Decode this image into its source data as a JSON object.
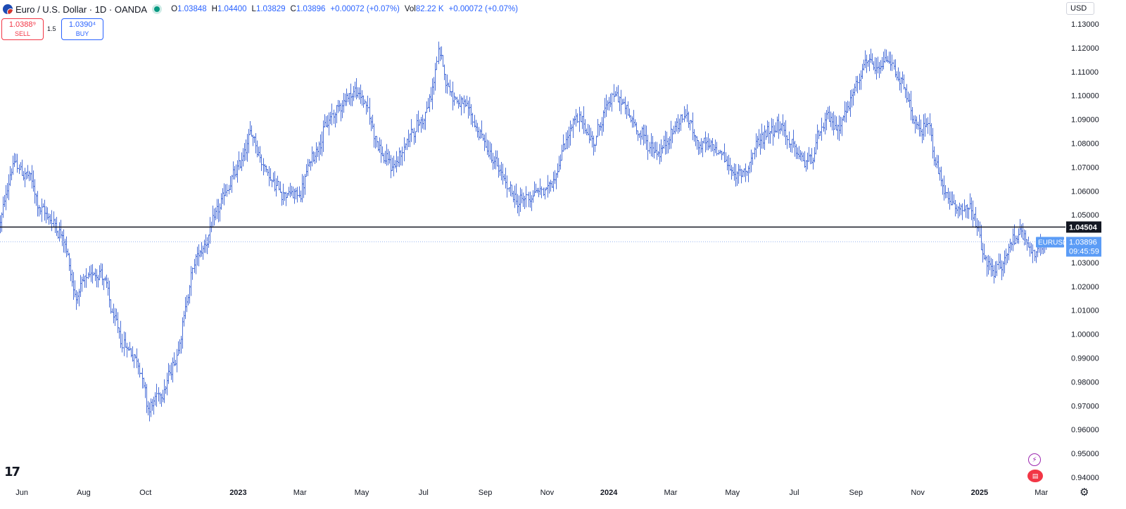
{
  "header": {
    "symbol_title": "Euro / U.S. Dollar · 1D · OANDA",
    "ohlc": [
      {
        "key": "O",
        "value": "1.03848"
      },
      {
        "key": "H",
        "value": "1.04400"
      },
      {
        "key": "L",
        "value": "1.03829"
      },
      {
        "key": "C",
        "value": "1.03896"
      },
      {
        "key": "",
        "value": "+0.00072 (+0.07%)"
      },
      {
        "key": "Vol",
        "value": "82.22 K"
      },
      {
        "key": "",
        "value": "+0.00072 (+0.07%)"
      }
    ],
    "currency": "USD"
  },
  "trade": {
    "sell_price": "1.0388⁹",
    "sell_label": "SELL",
    "spread": "1.5",
    "buy_price": "1.0390⁴",
    "buy_label": "BUY"
  },
  "chart_data": {
    "type": "ohlc",
    "symbol": "EURUSD",
    "interval": "1D",
    "broker": "OANDA",
    "y_range": [
      0.94,
      1.13
    ],
    "y_ticks": [
      "1.13000",
      "1.12000",
      "1.11000",
      "1.10000",
      "1.09000",
      "1.08000",
      "1.07000",
      "1.06000",
      "1.05000",
      "1.03000",
      "1.02000",
      "1.01000",
      "1.00000",
      "0.99000",
      "0.98000",
      "0.97000",
      "0.96000",
      "0.95000",
      "0.94000"
    ],
    "x_ticks": [
      {
        "label": "Jun",
        "t": 0.06
      },
      {
        "label": "Aug",
        "t": 2.06
      },
      {
        "label": "Oct",
        "t": 4.06
      },
      {
        "label": "2023",
        "t": 7.06
      },
      {
        "label": "Mar",
        "t": 9.06
      },
      {
        "label": "May",
        "t": 11.06
      },
      {
        "label": "Jul",
        "t": 13.06
      },
      {
        "label": "Sep",
        "t": 15.06
      },
      {
        "label": "Nov",
        "t": 17.06
      },
      {
        "label": "2024",
        "t": 19.06
      },
      {
        "label": "Mar",
        "t": 21.06
      },
      {
        "label": "May",
        "t": 23.06
      },
      {
        "label": "Jul",
        "t": 25.06
      },
      {
        "label": "Sep",
        "t": 27.06
      },
      {
        "label": "Nov",
        "t": 29.06
      },
      {
        "label": "2025",
        "t": 31.06
      },
      {
        "label": "Mar",
        "t": 33.06
      }
    ],
    "bold_x_ticks": [
      "2023",
      "2024",
      "2025"
    ],
    "x_range_months": [
      -0.65,
      33.75
    ],
    "path_months": [
      [
        -0.65,
        1.047
      ],
      [
        -0.3,
        1.072
      ],
      [
        0.3,
        1.065
      ],
      [
        0.6,
        1.052
      ],
      [
        1.0,
        1.048
      ],
      [
        1.4,
        1.04
      ],
      [
        1.75,
        1.015
      ],
      [
        2.0,
        1.02
      ],
      [
        2.3,
        1.025
      ],
      [
        2.55,
        1.028
      ],
      [
        2.7,
        1.022
      ],
      [
        2.9,
        1.01
      ],
      [
        3.2,
        0.998
      ],
      [
        3.6,
        0.992
      ],
      [
        3.9,
        0.985
      ],
      [
        4.1,
        0.968
      ],
      [
        4.35,
        0.972
      ],
      [
        4.7,
        0.98
      ],
      [
        5.0,
        0.99
      ],
      [
        5.3,
        1.01
      ],
      [
        5.6,
        1.03
      ],
      [
        6.0,
        1.04
      ],
      [
        6.5,
        1.055
      ],
      [
        6.8,
        1.065
      ],
      [
        7.0,
        1.068
      ],
      [
        7.3,
        1.08
      ],
      [
        7.5,
        1.085
      ],
      [
        7.8,
        1.072
      ],
      [
        8.2,
        1.062
      ],
      [
        8.5,
        1.06
      ],
      [
        8.8,
        1.058
      ],
      [
        9.0,
        1.058
      ],
      [
        9.3,
        1.07
      ],
      [
        9.6,
        1.08
      ],
      [
        10.0,
        1.09
      ],
      [
        10.4,
        1.098
      ],
      [
        10.8,
        1.102
      ],
      [
        11.1,
        1.098
      ],
      [
        11.4,
        1.085
      ],
      [
        11.7,
        1.074
      ],
      [
        12.0,
        1.07
      ],
      [
        12.3,
        1.075
      ],
      [
        12.6,
        1.085
      ],
      [
        13.0,
        1.09
      ],
      [
        13.3,
        1.1
      ],
      [
        13.5,
        1.12
      ],
      [
        13.7,
        1.108
      ],
      [
        14.0,
        1.1
      ],
      [
        14.3,
        1.095
      ],
      [
        14.6,
        1.09
      ],
      [
        15.0,
        1.08
      ],
      [
        15.4,
        1.07
      ],
      [
        15.8,
        1.06
      ],
      [
        16.1,
        1.055
      ],
      [
        16.4,
        1.058
      ],
      [
        16.7,
        1.06
      ],
      [
        17.0,
        1.06
      ],
      [
        17.3,
        1.068
      ],
      [
        17.6,
        1.08
      ],
      [
        17.9,
        1.09
      ],
      [
        18.2,
        1.088
      ],
      [
        18.5,
        1.08
      ],
      [
        18.8,
        1.09
      ],
      [
        19.1,
        1.1
      ],
      [
        19.4,
        1.098
      ],
      [
        19.7,
        1.09
      ],
      [
        20.0,
        1.085
      ],
      [
        20.3,
        1.08
      ],
      [
        20.6,
        1.075
      ],
      [
        20.9,
        1.08
      ],
      [
        21.2,
        1.088
      ],
      [
        21.5,
        1.092
      ],
      [
        21.9,
        1.08
      ],
      [
        22.3,
        1.077
      ],
      [
        22.6,
        1.078
      ],
      [
        22.9,
        1.07
      ],
      [
        23.2,
        1.065
      ],
      [
        23.5,
        1.07
      ],
      [
        23.8,
        1.078
      ],
      [
        24.1,
        1.085
      ],
      [
        24.5,
        1.088
      ],
      [
        24.9,
        1.08
      ],
      [
        25.2,
        1.073
      ],
      [
        25.5,
        1.072
      ],
      [
        25.8,
        1.082
      ],
      [
        26.1,
        1.09
      ],
      [
        26.4,
        1.087
      ],
      [
        26.8,
        1.095
      ],
      [
        27.1,
        1.108
      ],
      [
        27.4,
        1.115
      ],
      [
        27.7,
        1.108
      ],
      [
        28.0,
        1.115
      ],
      [
        28.3,
        1.112
      ],
      [
        28.6,
        1.1
      ],
      [
        28.9,
        1.09
      ],
      [
        29.1,
        1.083
      ],
      [
        29.4,
        1.09
      ],
      [
        29.6,
        1.07
      ],
      [
        29.9,
        1.058
      ],
      [
        30.2,
        1.052
      ],
      [
        30.5,
        1.055
      ],
      [
        30.8,
        1.05
      ],
      [
        31.0,
        1.04
      ],
      [
        31.2,
        1.03
      ],
      [
        31.5,
        1.025
      ],
      [
        31.8,
        1.03
      ],
      [
        32.1,
        1.04
      ],
      [
        32.4,
        1.045
      ],
      [
        32.6,
        1.038
      ],
      [
        32.9,
        1.032
      ],
      [
        33.2,
        1.03896
      ]
    ],
    "bar_color": "#4a6fd8",
    "horizontal_line": {
      "value": 1.04504,
      "label": "1.04504",
      "color": "#131722"
    },
    "current_price": {
      "value": 1.03896,
      "label": "1.03896",
      "countdown": "09:45:59",
      "symbol_label": "EURUSD",
      "color": "#5b9cf6"
    },
    "grid": false,
    "legend": "top-left"
  }
}
